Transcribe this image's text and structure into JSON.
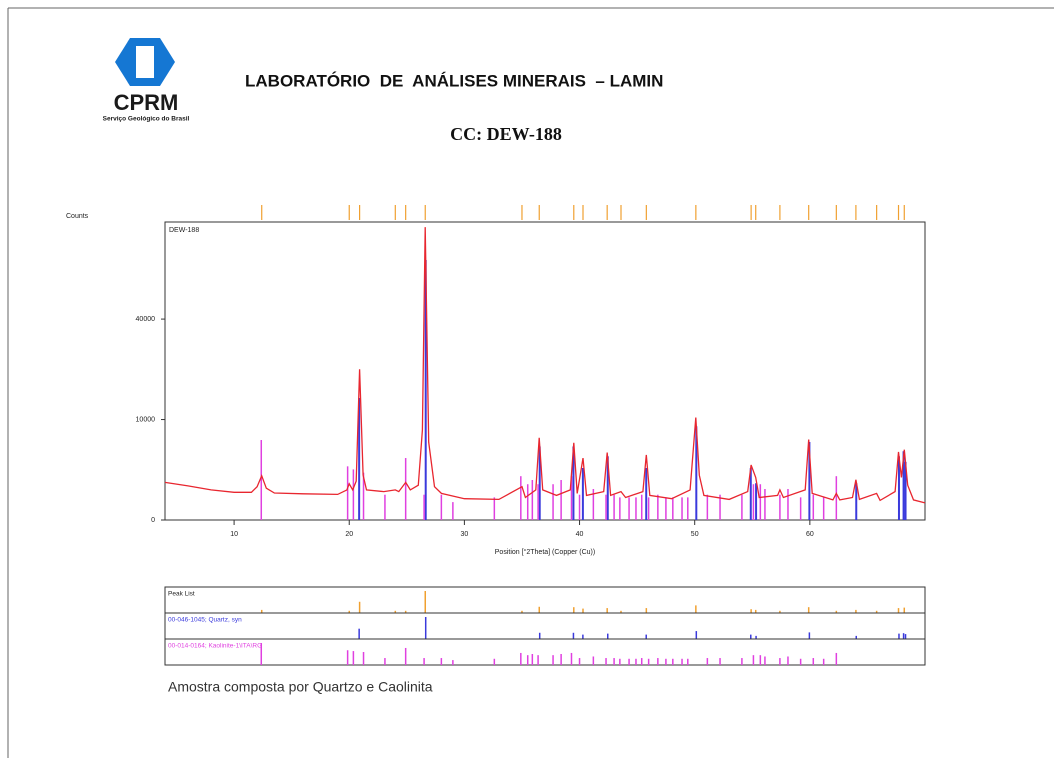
{
  "logo": {
    "name": "CPRM",
    "tagline": "Serviço Geológico do Brasil"
  },
  "header": {
    "title": "LABORATÓRIO  DE  ANÁLISES MINERAIS  – LAMIN",
    "subtitle": "CC: DEW-188"
  },
  "chart_data": {
    "type": "line",
    "ylabel": "Counts",
    "xlabel": "Position [°2Theta] (Copper (Cu))",
    "xlim": [
      4,
      70
    ],
    "xticks": [
      10,
      20,
      30,
      40,
      50,
      60
    ],
    "ylim": [
      0,
      88000
    ],
    "yticks": [
      0,
      10000,
      40000
    ],
    "yscale": "sqrt",
    "series": [
      {
        "name": "DEW-188",
        "color": "#e8262f",
        "x": [
          4,
          6,
          8,
          10,
          11.5,
          12.0,
          12.4,
          12.8,
          13.5,
          16,
          19,
          19.8,
          20.0,
          20.3,
          20.6,
          20.9,
          21.2,
          21.5,
          23,
          24.0,
          24.3,
          24.9,
          25.3,
          26.0,
          26.35,
          26.6,
          26.9,
          27.4,
          28,
          30,
          33,
          35.0,
          35.3,
          36.2,
          36.5,
          36.8,
          38,
          39.2,
          39.5,
          39.8,
          40.3,
          40.6,
          42.1,
          42.4,
          42.7,
          43.6,
          44,
          45.5,
          45.8,
          46.1,
          48,
          49.6,
          50.1,
          50.4,
          50.8,
          53,
          54.6,
          54.9,
          55.3,
          55.6,
          57.2,
          57.4,
          57.7,
          59.6,
          59.9,
          60.2,
          62,
          62.3,
          62.6,
          63.7,
          64.0,
          64.3,
          65.8,
          66.1,
          67.4,
          67.7,
          67.95,
          68.2,
          68.5,
          69,
          70
        ],
        "values": [
          1400,
          1150,
          900,
          760,
          760,
          1100,
          1940,
          1000,
          720,
          680,
          650,
          900,
          1300,
          900,
          1500,
          22500,
          2000,
          900,
          800,
          900,
          800,
          1400,
          900,
          1200,
          8000,
          85000,
          6000,
          1100,
          700,
          450,
          420,
          1100,
          500,
          900,
          6700,
          900,
          600,
          900,
          5900,
          700,
          3800,
          600,
          800,
          4500,
          600,
          800,
          500,
          800,
          4200,
          600,
          450,
          900,
          10400,
          2000,
          600,
          420,
          800,
          3000,
          1800,
          500,
          600,
          900,
          500,
          900,
          6400,
          700,
          400,
          700,
          400,
          500,
          1600,
          420,
          700,
          380,
          800,
          4600,
          1800,
          4900,
          1200,
          400,
          290
        ]
      }
    ],
    "references": [
      {
        "name": "Peak List",
        "color": "#f0a030",
        "positions": [
          12.4,
          20.0,
          20.9,
          24.0,
          24.9,
          26.6,
          35.0,
          36.5,
          39.5,
          40.3,
          42.4,
          43.6,
          45.8,
          50.1,
          54.9,
          55.3,
          57.4,
          59.9,
          62.3,
          64.0,
          65.8,
          67.7,
          68.2
        ],
        "intensities": [
          2,
          1,
          26,
          1,
          1,
          100,
          1,
          8,
          7,
          4,
          5,
          1,
          5,
          12,
          3,
          2,
          1,
          7,
          1,
          2,
          1,
          5,
          6
        ]
      },
      {
        "name": "00-046-1045; Quartz, syn",
        "color": "#3a3adc",
        "positions": [
          20.86,
          26.64,
          36.54,
          39.47,
          40.29,
          42.45,
          45.79,
          50.14,
          54.87,
          55.33,
          59.96,
          64.03,
          67.74,
          68.14,
          68.31
        ],
        "intensities": [
          22,
          100,
          8,
          8,
          4,
          6,
          4,
          13,
          4,
          2,
          9,
          2,
          6,
          7,
          5
        ]
      },
      {
        "name": "00-014-0164; Kaolinite-1\\ITA\\RG",
        "color": "#e040e0",
        "positions": [
          12.36,
          19.86,
          20.36,
          21.24,
          23.1,
          24.9,
          26.5,
          28.0,
          29.0,
          32.6,
          34.9,
          35.5,
          35.9,
          36.4,
          37.7,
          38.4,
          39.3,
          40.0,
          41.2,
          42.3,
          43.0,
          43.5,
          44.3,
          44.9,
          45.4,
          46.0,
          46.8,
          47.5,
          48.1,
          48.9,
          49.4,
          51.1,
          52.2,
          54.1,
          55.1,
          55.7,
          56.1,
          57.4,
          58.1,
          59.2,
          60.3,
          61.2,
          62.3
        ],
        "intensities": [
          100,
          45,
          40,
          35,
          10,
          60,
          10,
          10,
          5,
          8,
          30,
          20,
          25,
          20,
          20,
          25,
          30,
          10,
          15,
          10,
          10,
          8,
          8,
          8,
          10,
          8,
          10,
          8,
          8,
          8,
          8,
          10,
          10,
          10,
          20,
          20,
          15,
          10,
          15,
          8,
          10,
          8,
          30
        ]
      }
    ]
  },
  "footer": "Amostra composta por Quartzo e Caolinita"
}
